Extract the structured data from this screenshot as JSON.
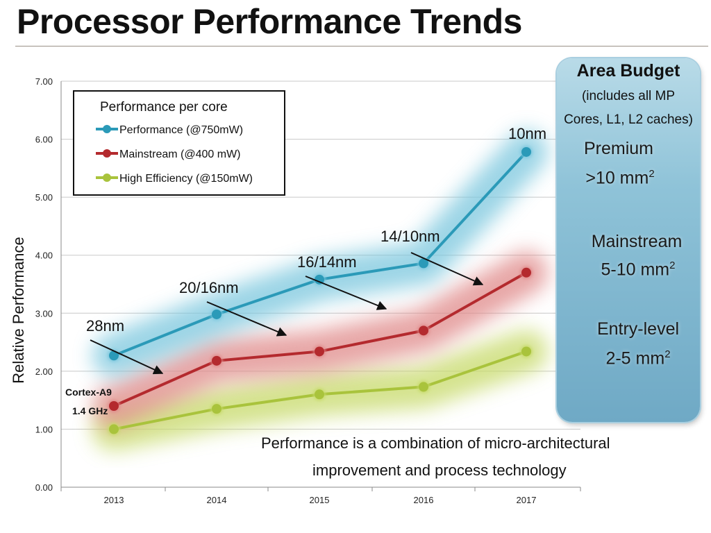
{
  "page": {
    "title": "Processor Performance Trends"
  },
  "chart_data": {
    "type": "line",
    "categories": [
      "2013",
      "2014",
      "2015",
      "2016",
      "2017"
    ],
    "ylabel": "Relative Performance",
    "ylim": [
      0,
      7
    ],
    "yticks": [
      "0.00",
      "1.00",
      "2.00",
      "3.00",
      "4.00",
      "5.00",
      "6.00",
      "7.00"
    ],
    "grid": "horizontal",
    "legend": {
      "title": "Performance per core",
      "placement": "top-left"
    },
    "series": [
      {
        "name": "Performance  (@750mW)",
        "color": "#2b9ab8",
        "glow": "#7cc7de",
        "values": [
          2.27,
          2.98,
          3.58,
          3.86,
          5.78
        ]
      },
      {
        "name": "Mainstream (@400 mW)",
        "color": "#b42a2e",
        "glow": "#e08a8a",
        "values": [
          1.4,
          2.18,
          2.34,
          2.7,
          3.7
        ]
      },
      {
        "name": "High Efficiency (@150mW)",
        "color": "#a9c33c",
        "glow": "#c7da6a",
        "values": [
          1.0,
          1.35,
          1.6,
          1.73,
          2.34
        ]
      }
    ],
    "process_nodes": [
      "28nm",
      "20/16nm",
      "16/14nm",
      "14/10nm",
      "10nm"
    ],
    "annotations": {
      "baseline_core": "Cortex-A9",
      "baseline_clock": "1.4 GHz",
      "note_line1": "Performance is a combination of micro-architectural",
      "note_line2": "improvement and process technology"
    }
  },
  "area_budget": {
    "title": "Area Budget",
    "subtitle_line1": "(includes all MP",
    "subtitle_line2": "Cores, L1, L2 caches)",
    "tiers": [
      {
        "name": "Premium",
        "size": ">10 mm",
        "unit_sup": "2"
      },
      {
        "name": "Mainstream",
        "size": "5-10 mm",
        "unit_sup": "2"
      },
      {
        "name": "Entry-level",
        "size": "2-5 mm",
        "unit_sup": "2"
      }
    ]
  }
}
